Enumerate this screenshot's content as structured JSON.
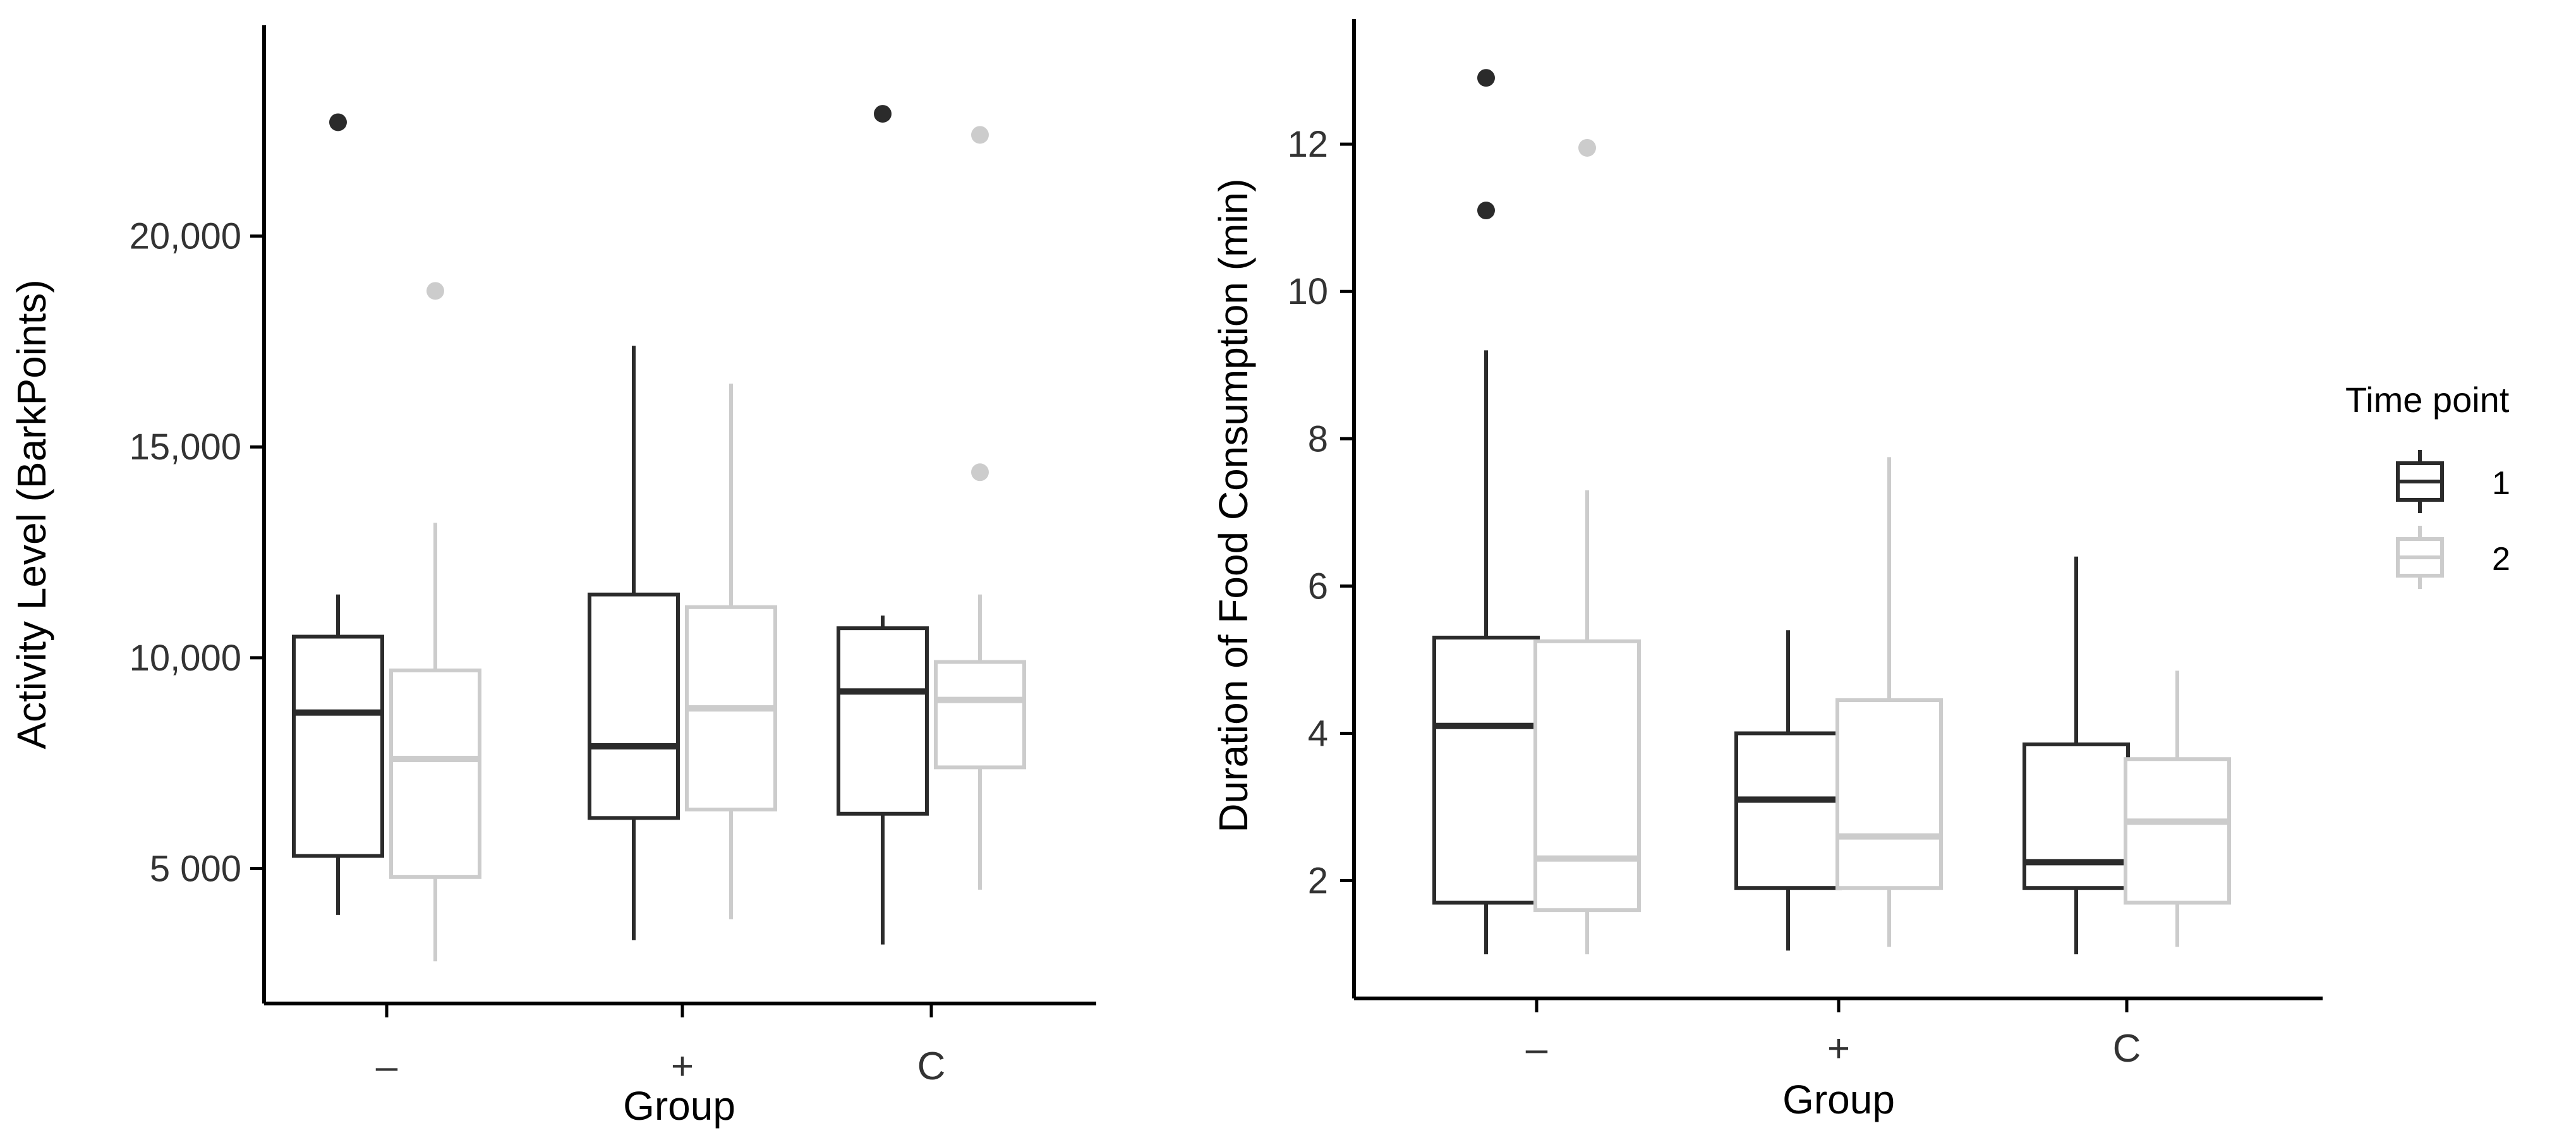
{
  "chart_data": [
    {
      "type": "box",
      "xlabel": "Group",
      "ylabel": "Activity Level (BarkPoints)",
      "categories": [
        "–",
        "+",
        "C"
      ],
      "ylim": [
        1800,
        25000
      ],
      "yticks": [
        {
          "value": 5000,
          "label": "5 000"
        },
        {
          "value": 10000,
          "label": "10,000"
        },
        {
          "value": 15000,
          "label": "15,000"
        },
        {
          "value": 20000,
          "label": "20,000"
        }
      ],
      "series": [
        {
          "name": "1",
          "color": "#2b2b2b",
          "boxes": [
            {
              "whisker_low": 3900,
              "q1": 5300,
              "median": 8700,
              "q3": 10500,
              "whisker_high": 11500,
              "outliers": [
                22700
              ]
            },
            {
              "whisker_low": 3300,
              "q1": 6200,
              "median": 7900,
              "q3": 11500,
              "whisker_high": 17400,
              "outliers": []
            },
            {
              "whisker_low": 3200,
              "q1": 6300,
              "median": 9200,
              "q3": 10700,
              "whisker_high": 11000,
              "outliers": [
                22900
              ]
            }
          ]
        },
        {
          "name": "2",
          "color": "#cccccc",
          "boxes": [
            {
              "whisker_low": 2800,
              "q1": 4800,
              "median": 7600,
              "q3": 9700,
              "whisker_high": 13200,
              "outliers": [
                18700
              ]
            },
            {
              "whisker_low": 3800,
              "q1": 6400,
              "median": 8800,
              "q3": 11200,
              "whisker_high": 16500,
              "outliers": []
            },
            {
              "whisker_low": 4500,
              "q1": 7400,
              "median": 9000,
              "q3": 9900,
              "whisker_high": 11500,
              "outliers": [
                14400,
                22400
              ]
            }
          ]
        }
      ]
    },
    {
      "type": "box",
      "xlabel": "Group",
      "ylabel": "Duration of Food Consumption (min)",
      "categories": [
        "–",
        "+",
        "C"
      ],
      "ylim": [
        0.4,
        13.7
      ],
      "yticks": [
        {
          "value": 2,
          "label": "2"
        },
        {
          "value": 4,
          "label": "4"
        },
        {
          "value": 6,
          "label": "6"
        },
        {
          "value": 8,
          "label": "8"
        },
        {
          "value": 10,
          "label": "10"
        },
        {
          "value": 12,
          "label": "12"
        }
      ],
      "series": [
        {
          "name": "1",
          "color": "#2b2b2b",
          "boxes": [
            {
              "whisker_low": 1.0,
              "q1": 1.7,
              "median": 4.1,
              "q3": 5.3,
              "whisker_high": 9.2,
              "outliers": [
                11.1,
                12.9
              ]
            },
            {
              "whisker_low": 1.05,
              "q1": 1.9,
              "median": 3.1,
              "q3": 4.0,
              "whisker_high": 5.4,
              "outliers": []
            },
            {
              "whisker_low": 1.0,
              "q1": 1.9,
              "median": 2.25,
              "q3": 3.85,
              "whisker_high": 6.4,
              "outliers": []
            }
          ]
        },
        {
          "name": "2",
          "color": "#cccccc",
          "boxes": [
            {
              "whisker_low": 1.0,
              "q1": 1.6,
              "median": 2.3,
              "q3": 5.25,
              "whisker_high": 7.3,
              "outliers": [
                11.95
              ]
            },
            {
              "whisker_low": 1.1,
              "q1": 1.9,
              "median": 2.6,
              "q3": 4.45,
              "whisker_high": 7.75,
              "outliers": []
            },
            {
              "whisker_low": 1.1,
              "q1": 1.7,
              "median": 2.8,
              "q3": 3.65,
              "whisker_high": 4.85,
              "outliers": []
            }
          ]
        }
      ]
    }
  ],
  "legend": {
    "title": "Time point",
    "items": [
      {
        "label": "1",
        "color": "#2b2b2b"
      },
      {
        "label": "2",
        "color": "#cccccc"
      }
    ]
  }
}
